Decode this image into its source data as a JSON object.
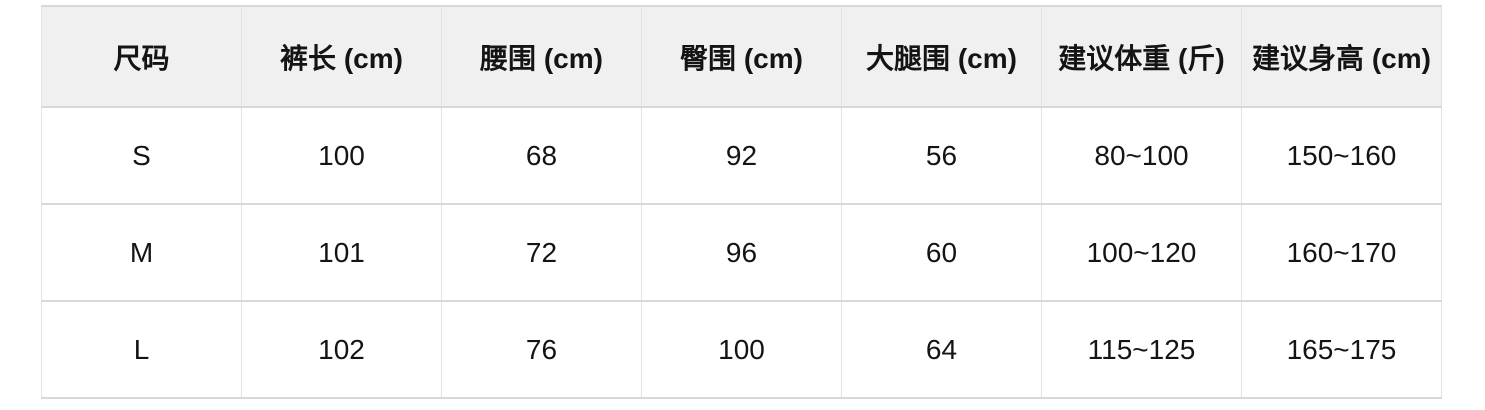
{
  "chart_data": {
    "type": "table",
    "columns": [
      "尺码",
      "裤长 (cm)",
      "腰围 (cm)",
      "臀围 (cm)",
      "大腿围 (cm)",
      "建议体重 (斤)",
      "建议身高 (cm)"
    ],
    "rows": [
      [
        "S",
        "100",
        "68",
        "92",
        "56",
        "80~100",
        "150~160"
      ],
      [
        "M",
        "101",
        "72",
        "96",
        "60",
        "100~120",
        "160~170"
      ],
      [
        "L",
        "102",
        "76",
        "100",
        "64",
        "115~125",
        "165~175"
      ]
    ]
  },
  "colors": {
    "header_bg": "#f0f0f0",
    "row_bg": "#ffffff",
    "border_horizontal": "#d8d8d8",
    "border_vertical": "#e3e3e3",
    "text": "#141414",
    "page_bg": "#ffffff"
  }
}
